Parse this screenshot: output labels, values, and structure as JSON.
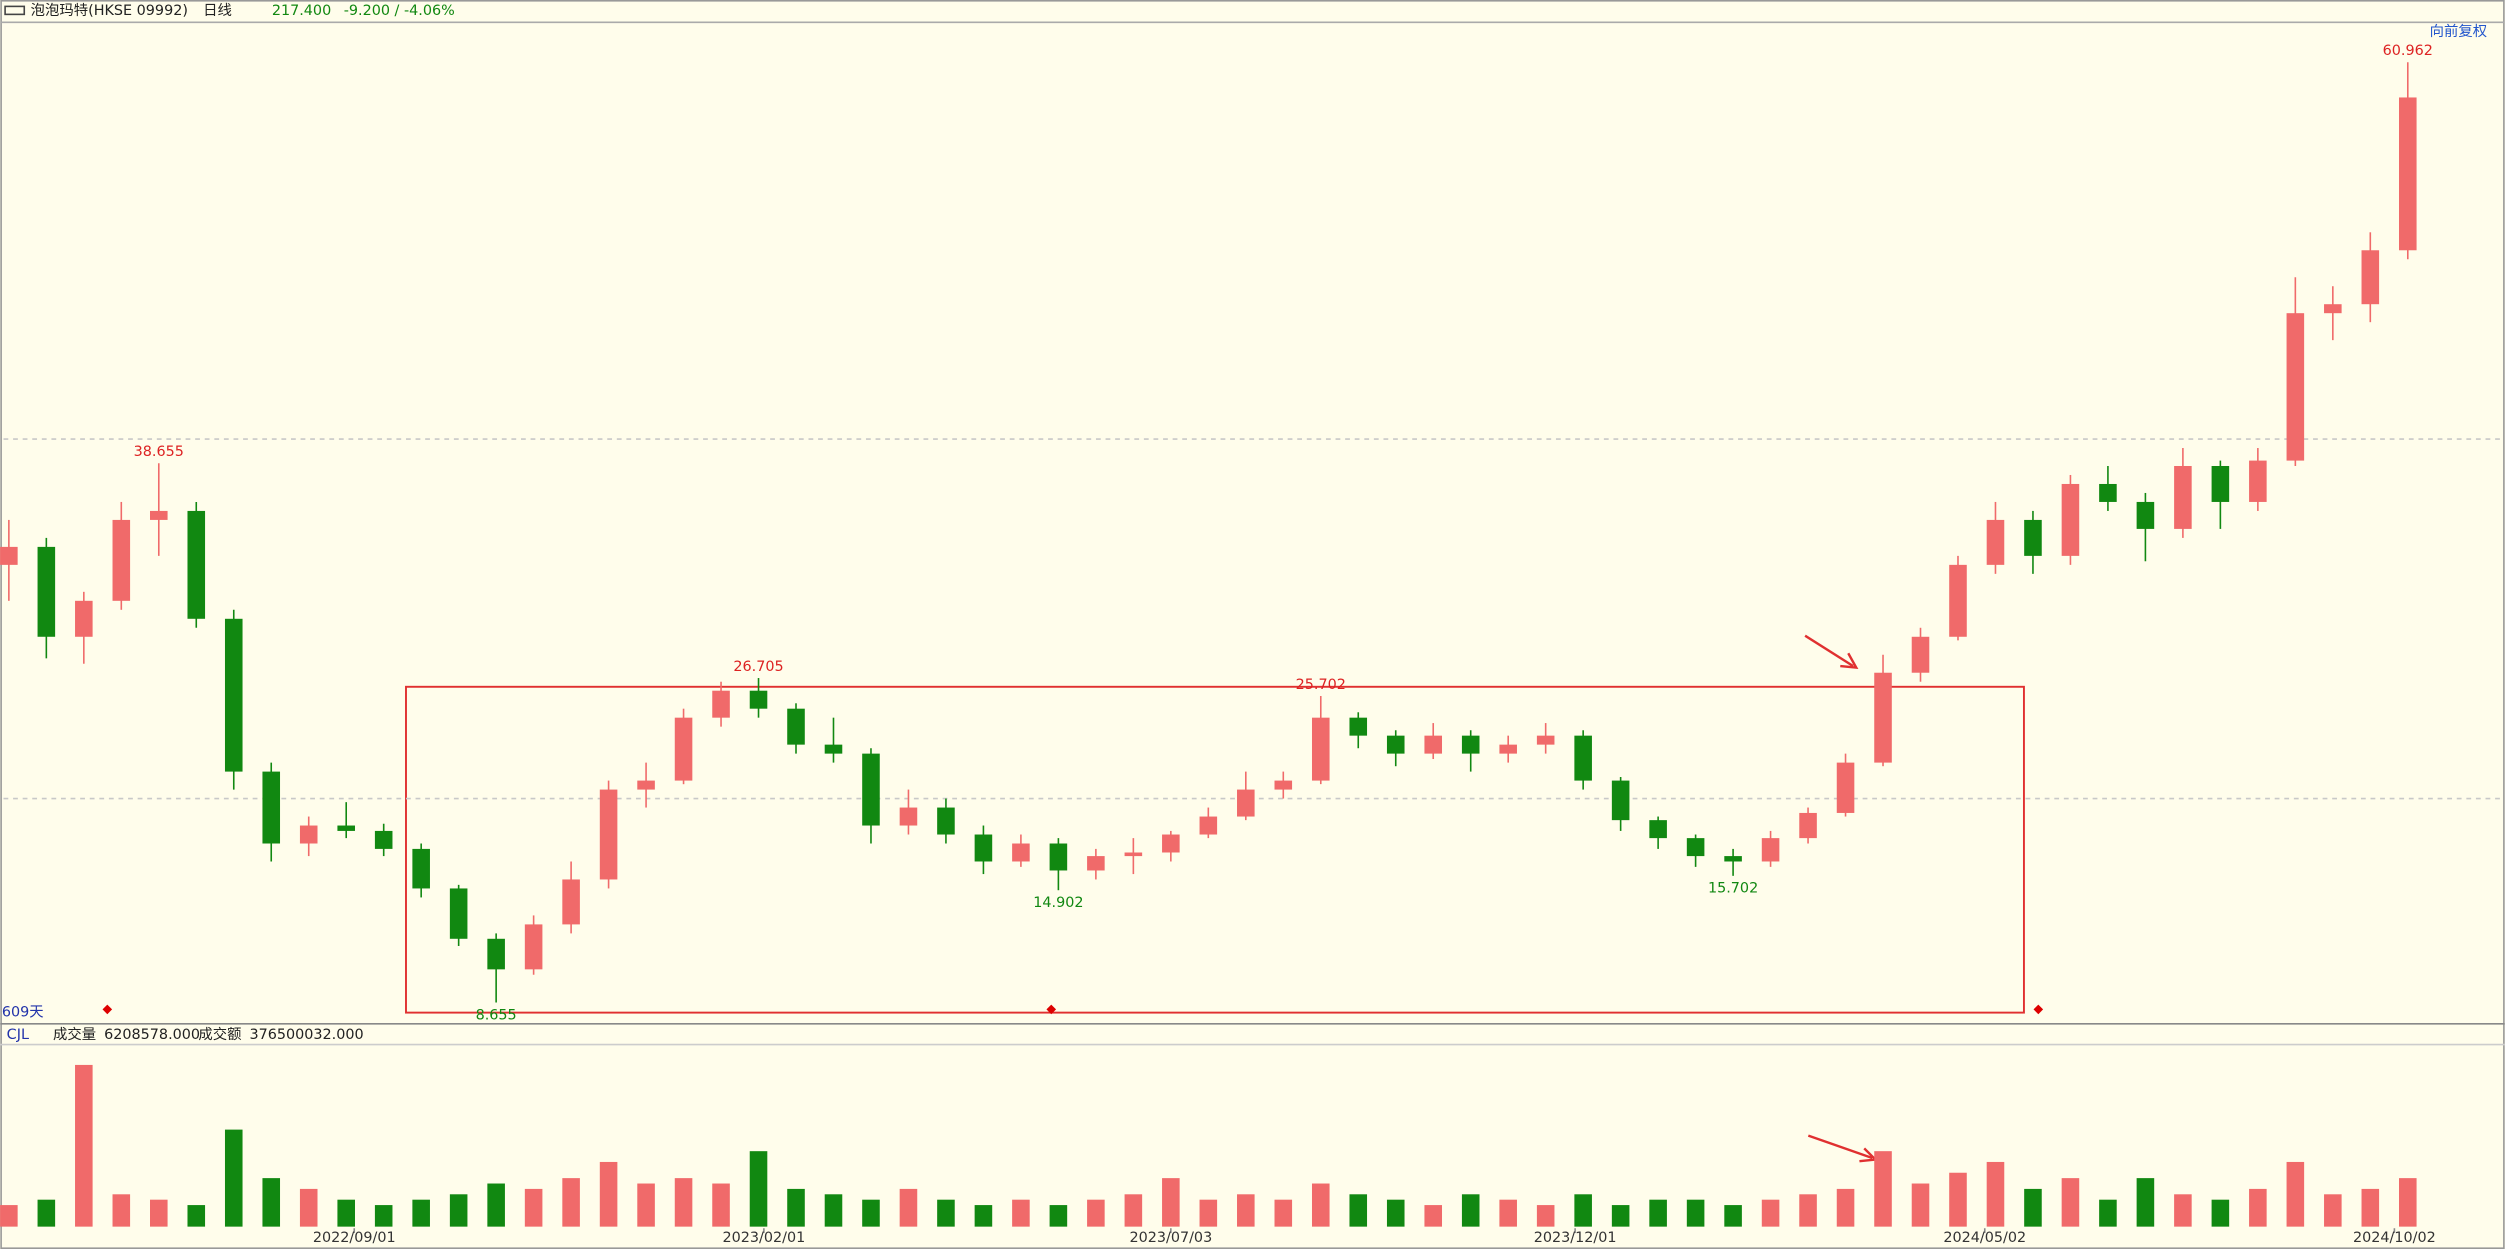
{
  "chart_data": {
    "type": "candlestick",
    "header": {
      "name": "泡泡玛特(HKSE 09992)",
      "period": "日线",
      "price": "217.400",
      "change": "-9.200 / -4.06%"
    },
    "adjust_label": "向前复权",
    "span_label": "609天",
    "volume_header": {
      "indicator": "CJL",
      "volume_label": "成交量",
      "volume": "6208578.000",
      "amount_label": "成交额",
      "amount": "376500032.000"
    },
    "up_color": "#f06a6a",
    "down_color": "#118811",
    "grid": true,
    "xlim": [
      "2022/04/23",
      "2024/11/11"
    ],
    "xticks": [
      "2022/09/01",
      "2023/02/01",
      "2023/07/03",
      "2023/12/01",
      "2024/05/02",
      "2024/10/02"
    ],
    "ylim": [
      7.56,
      63.0
    ],
    "yticks": [
      20,
      40
    ],
    "volume_ylim": [
      0,
      32000000
    ],
    "x": [
      "2022/04/25",
      "2022/05/09",
      "2022/05/23",
      "2022/06/06",
      "2022/06/20",
      "2022/07/04",
      "2022/07/18",
      "2022/08/01",
      "2022/08/15",
      "2022/08/29",
      "2022/09/12",
      "2022/09/26",
      "2022/10/10",
      "2022/10/24",
      "2022/11/07",
      "2022/11/21",
      "2022/12/05",
      "2022/12/19",
      "2023/01/02",
      "2023/01/16",
      "2023/01/30",
      "2023/02/13",
      "2023/02/27",
      "2023/03/13",
      "2023/03/27",
      "2023/04/10",
      "2023/04/24",
      "2023/05/08",
      "2023/05/22",
      "2023/06/05",
      "2023/06/19",
      "2023/07/03",
      "2023/07/17",
      "2023/07/31",
      "2023/08/14",
      "2023/08/28",
      "2023/09/11",
      "2023/09/25",
      "2023/10/09",
      "2023/10/23",
      "2023/11/06",
      "2023/11/20",
      "2023/12/04",
      "2023/12/18",
      "2024/01/01",
      "2024/01/15",
      "2024/01/29",
      "2024/02/12",
      "2024/02/26",
      "2024/03/11",
      "2024/03/25",
      "2024/04/08",
      "2024/04/22",
      "2024/05/06",
      "2024/05/20",
      "2024/06/03",
      "2024/06/17",
      "2024/07/01",
      "2024/07/15",
      "2024/07/29",
      "2024/08/12",
      "2024/08/26",
      "2024/09/09",
      "2024/09/23",
      "2024/10/07"
    ],
    "open": [
      33,
      34,
      29,
      31,
      35.5,
      36,
      30,
      21.5,
      17.5,
      18.5,
      18.2,
      17.2,
      15,
      12.2,
      10.5,
      13,
      15.5,
      20.5,
      21,
      24.5,
      26,
      25,
      23,
      22.5,
      18.5,
      19.5,
      18,
      16.5,
      17.5,
      16,
      16.8,
      17,
      18,
      19,
      20.5,
      21,
      24.5,
      23.5,
      22.5,
      23.5,
      22.5,
      23,
      23.5,
      21,
      18.8,
      17.8,
      16.8,
      16.5,
      17.8,
      19.2,
      22,
      27,
      29,
      33,
      35.5,
      33.5,
      37.5,
      36.5,
      35,
      38.5,
      36.5,
      38.8,
      47,
      47.5,
      50.5
    ],
    "high": [
      35.5,
      34.5,
      31.5,
      36.5,
      38.655,
      36.5,
      30.5,
      22,
      19,
      19.8,
      18.6,
      17.5,
      15.2,
      12.5,
      13.5,
      16.5,
      21,
      22,
      25,
      26.5,
      26.705,
      25.3,
      24.5,
      22.8,
      20.5,
      20,
      18.5,
      18,
      17.8,
      17.2,
      17.8,
      18.2,
      19.5,
      21.5,
      21.5,
      25.702,
      24.8,
      23.8,
      24.2,
      23.8,
      23.5,
      24.2,
      23.8,
      21.2,
      19,
      18,
      17.2,
      18.2,
      19.5,
      22.5,
      28,
      29.5,
      33.5,
      36.5,
      36,
      38,
      38.5,
      37,
      39.5,
      38.8,
      39.5,
      49,
      48.5,
      51.5,
      60.962
    ],
    "low": [
      31,
      27.8,
      27.5,
      30.5,
      33.5,
      29.5,
      20.5,
      16.5,
      16.8,
      17.8,
      16.8,
      14.5,
      11.8,
      8.655,
      10.2,
      12.5,
      15,
      19.5,
      20.8,
      24,
      24.5,
      22.5,
      22,
      17.5,
      18,
      17.5,
      15.8,
      16.2,
      14.902,
      15.5,
      15.8,
      16.5,
      17.8,
      18.8,
      20,
      20.8,
      22.8,
      21.8,
      22.2,
      21.5,
      22,
      22.5,
      20.5,
      18.2,
      17.2,
      16.2,
      15.702,
      16.2,
      17.5,
      19,
      21.8,
      26.5,
      28.8,
      32.5,
      32.5,
      33,
      36,
      33.2,
      34.5,
      35,
      36,
      38.5,
      45.5,
      46.5,
      50
    ],
    "close": [
      34,
      29,
      31,
      35.5,
      36,
      30,
      21.5,
      17.5,
      18.5,
      18.2,
      17.2,
      15,
      12.2,
      10.5,
      13,
      15.5,
      20.5,
      21,
      24.5,
      26,
      25,
      23,
      22.5,
      18.5,
      19.5,
      18,
      16.5,
      17.5,
      16,
      16.8,
      17,
      18,
      19,
      20.5,
      21,
      24.5,
      23.5,
      22.5,
      23.5,
      22.5,
      23,
      23.5,
      21,
      18.8,
      17.8,
      16.8,
      16.5,
      17.8,
      19.2,
      22,
      27,
      29,
      33,
      35.5,
      33.5,
      37.5,
      36.5,
      35,
      38.5,
      36.5,
      38.8,
      47,
      47.5,
      50.5,
      59
    ],
    "volume": [
      4000000,
      5000000,
      30000000,
      6000000,
      5000000,
      4000000,
      18000000,
      9000000,
      7000000,
      5000000,
      4000000,
      5000000,
      6000000,
      8000000,
      7000000,
      9000000,
      12000000,
      8000000,
      9000000,
      8000000,
      14000000,
      7000000,
      6000000,
      5000000,
      7000000,
      5000000,
      4000000,
      5000000,
      4000000,
      5000000,
      6000000,
      9000000,
      5000000,
      6000000,
      5000000,
      8000000,
      6000000,
      5000000,
      4000000,
      6000000,
      5000000,
      4000000,
      6000000,
      4000000,
      5000000,
      5000000,
      4000000,
      5000000,
      6000000,
      7000000,
      14000000,
      8000000,
      10000000,
      12000000,
      7000000,
      9000000,
      5000000,
      9000000,
      6000000,
      5000000,
      7000000,
      12000000,
      6000000,
      7000000,
      9000000
    ]
  }
}
